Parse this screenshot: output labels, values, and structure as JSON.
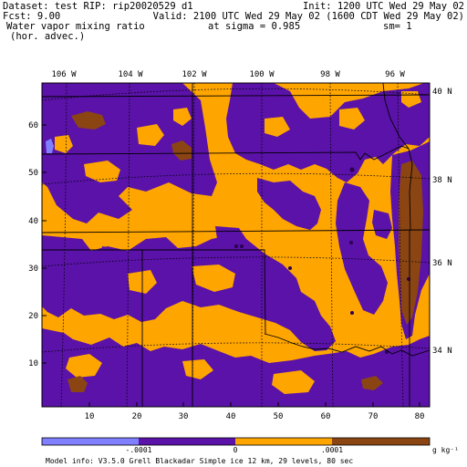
{
  "header": {
    "dataset": "Dataset: test  RIP: rip20020529 d1",
    "init": "Init: 1200 UTC Wed 29 May 02",
    "fcst": "Fcst:     9.00",
    "valid": "Valid: 2100 UTC Wed 29 May 02 (1600 CDT Wed 29 May 02)",
    "field": "Water vapor mixing ratio",
    "sigma": "at sigma = 0.985",
    "sm": "sm= 1",
    "field_sub": "(hor. advec.)"
  },
  "map": {
    "lon_labels": [
      "106 W",
      "104 W",
      "102 W",
      "100 W",
      "98 W",
      "96 W"
    ],
    "lat_labels": [
      "40 N",
      "38 N",
      "36 N",
      "34 N"
    ],
    "x_ticks": [
      "10",
      "20",
      "30",
      "40",
      "50",
      "60",
      "70",
      "80"
    ],
    "y_ticks": [
      "10",
      "20",
      "30",
      "40",
      "50",
      "60"
    ]
  },
  "legend": {
    "labels": [
      "-.0001",
      "0",
      ".0001"
    ],
    "unit": "g kg⁻¹",
    "colors": [
      "#7f7fff",
      "#5a12a8",
      "#ffa500",
      "#8b4513"
    ]
  },
  "footer": {
    "model_info": "Model info: V3.5.0  Grell      Blackadar  Simple ice   12 km,  29 levels,   80 sec"
  },
  "colors": {
    "orange": "#ffa500",
    "purple": "#5a12a8",
    "brown": "#8b4513",
    "light_blue": "#7f7fff"
  }
}
